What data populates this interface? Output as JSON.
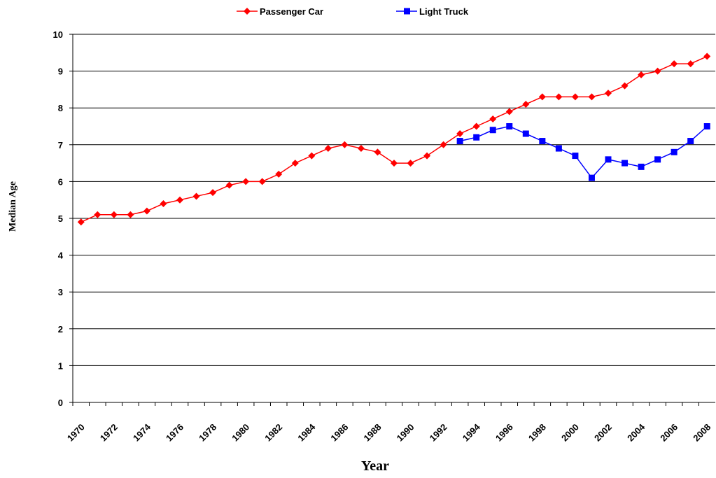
{
  "chart_data": {
    "type": "line",
    "x_label": "Year",
    "y_label": "Median Age",
    "categories": [
      "1970",
      null,
      "1972",
      null,
      "1974",
      null,
      "1976",
      null,
      "1978",
      null,
      "1980",
      null,
      "1982",
      null,
      "1984",
      null,
      "1986",
      null,
      "1988",
      null,
      "1990",
      null,
      "1992",
      null,
      "1994",
      null,
      "1996",
      null,
      "1998",
      null,
      "2000",
      null,
      "2002",
      null,
      "2004",
      null,
      "2006",
      null,
      "2008"
    ],
    "series": [
      {
        "name": "Passenger Car",
        "color": "#ff0000",
        "marker": "diamond",
        "values": [
          4.9,
          5.1,
          5.1,
          5.1,
          5.2,
          5.4,
          5.5,
          5.6,
          5.7,
          5.9,
          6.0,
          6.0,
          6.2,
          6.5,
          6.7,
          6.9,
          7.0,
          6.9,
          6.8,
          6.5,
          6.5,
          6.7,
          7.0,
          7.3,
          7.5,
          7.7,
          7.9,
          8.1,
          8.3,
          8.3,
          8.3,
          8.3,
          8.4,
          8.6,
          8.9,
          9.0,
          9.2,
          9.2,
          9.4
        ]
      },
      {
        "name": "Light Truck",
        "color": "#0000ff",
        "marker": "square",
        "values": [
          null,
          null,
          null,
          null,
          null,
          null,
          null,
          null,
          null,
          null,
          null,
          null,
          null,
          null,
          null,
          null,
          null,
          null,
          null,
          null,
          null,
          null,
          null,
          7.1,
          7.2,
          7.4,
          7.5,
          7.3,
          7.1,
          6.9,
          6.7,
          6.1,
          6.6,
          6.5,
          6.4,
          6.6,
          6.8,
          7.1,
          7.5
        ]
      }
    ],
    "ylim": [
      0,
      10
    ],
    "yticks": [
      0,
      1,
      2,
      3,
      4,
      5,
      6,
      7,
      8,
      9,
      10
    ],
    "grid": true,
    "legend": "top"
  }
}
